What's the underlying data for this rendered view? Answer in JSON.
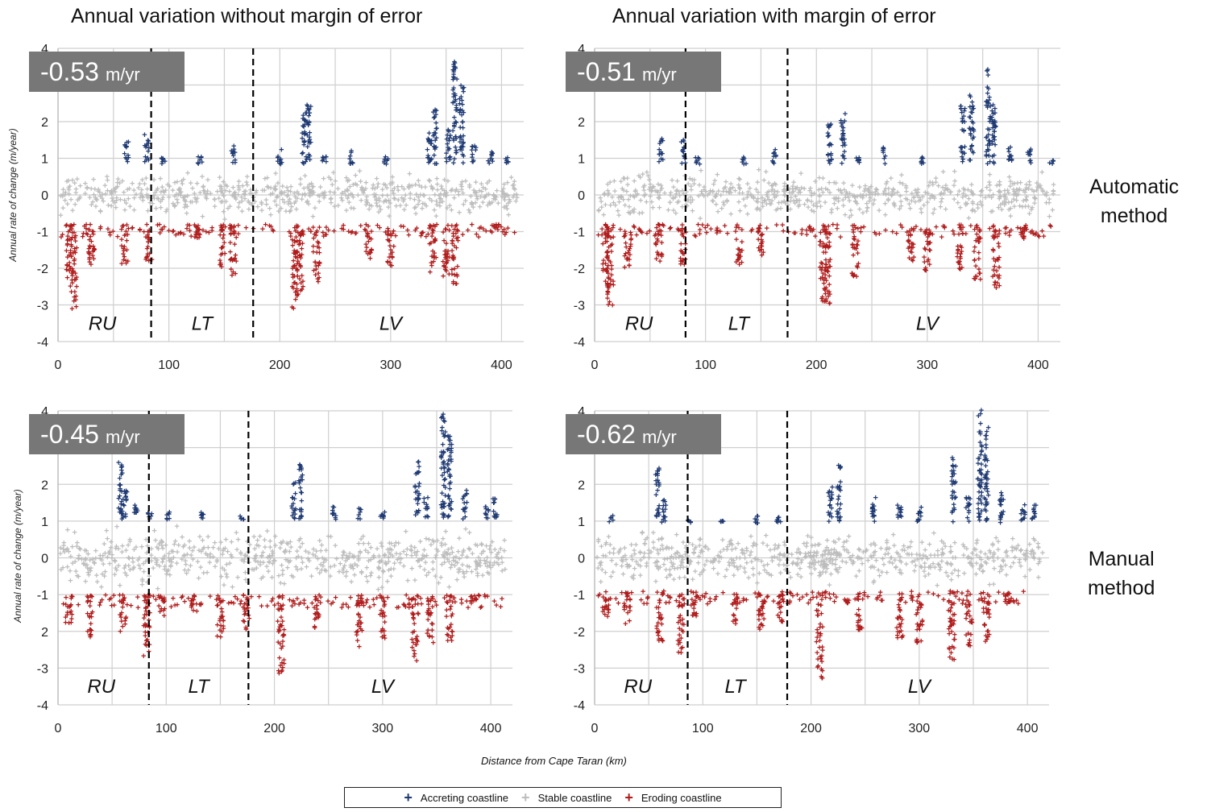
{
  "column_titles": [
    "Annual variation without margin of error",
    "Annual variation with margin of error"
  ],
  "row_labels": {
    "automatic": [
      "Automatic",
      "method"
    ],
    "manual": [
      "Manual",
      "method"
    ]
  },
  "x_axis_title": "Distance from Cape Taran (km)",
  "legend": [
    {
      "name": "Accreting coastline",
      "color": "#1f3a73"
    },
    {
      "name": "Stable coastline",
      "color": "#bdbdbd"
    },
    {
      "name": "Eroding coastline",
      "color": "#b01c1c"
    }
  ],
  "colors": {
    "accreting": "#1f3a73",
    "stable": "#bdbdbd",
    "eroding": "#b01c1c",
    "badge_bg": "#777777",
    "divider": "#000000",
    "grid": "#cfcfcf"
  },
  "chart_data": [
    {
      "type": "scatter",
      "panel": "automatic-without-margin",
      "mean_rate_value": "-0.53",
      "mean_rate_unit": "m/yr",
      "ylabel": "Annual rate of change (m/year)",
      "xlim": [
        0,
        420
      ],
      "ylim": [
        -4,
        4
      ],
      "xticks": [
        "0",
        "100",
        "200",
        "300",
        "400"
      ],
      "yticks": [
        "4",
        "",
        "2",
        "1",
        "0",
        "-1",
        "-2",
        "-3",
        "-4"
      ],
      "regions": [
        {
          "label": "RU",
          "x": 40
        },
        {
          "label": "LT",
          "x": 130
        },
        {
          "label": "LV",
          "x": 300
        }
      ],
      "dividers_x": [
        84,
        176
      ],
      "threshold_accreting": 0.8,
      "threshold_eroding": -0.8,
      "accreting_peaks": [
        [
          62,
          1.4
        ],
        [
          80,
          1.6
        ],
        [
          95,
          1.0
        ],
        [
          128,
          1.0
        ],
        [
          158,
          1.3
        ],
        [
          200,
          1.2
        ],
        [
          222,
          2.2
        ],
        [
          226,
          2.5
        ],
        [
          240,
          1.0
        ],
        [
          265,
          1.2
        ],
        [
          296,
          1.0
        ],
        [
          335,
          1.8
        ],
        [
          340,
          2.3
        ],
        [
          352,
          1.8
        ],
        [
          358,
          3.8
        ],
        [
          364,
          3.0
        ],
        [
          375,
          1.3
        ],
        [
          390,
          1.2
        ],
        [
          405,
          1.0
        ]
      ],
      "eroding_troughs": [
        [
          10,
          -2.5
        ],
        [
          14,
          -3.1
        ],
        [
          30,
          -2.1
        ],
        [
          60,
          -1.9
        ],
        [
          82,
          -1.8
        ],
        [
          126,
          -1.2
        ],
        [
          148,
          -2.0
        ],
        [
          158,
          -2.2
        ],
        [
          214,
          -3.2
        ],
        [
          218,
          -2.8
        ],
        [
          233,
          -2.4
        ],
        [
          280,
          -1.8
        ],
        [
          300,
          -2.0
        ],
        [
          338,
          -2.1
        ],
        [
          350,
          -2.3
        ],
        [
          358,
          -2.5
        ],
        [
          395,
          -0.9
        ]
      ],
      "seed": 1
    },
    {
      "type": "scatter",
      "panel": "automatic-with-margin",
      "mean_rate_value": "-0.51",
      "mean_rate_unit": "m/yr",
      "ylabel": "",
      "xlim": [
        0,
        420
      ],
      "ylim": [
        -4,
        4
      ],
      "xticks": [
        "0",
        "100",
        "200",
        "300",
        "400"
      ],
      "yticks": [
        "4",
        "",
        "2",
        "1",
        "0",
        "-1",
        "-2",
        "-3",
        "-4"
      ],
      "regions": [
        {
          "label": "RU",
          "x": 40
        },
        {
          "label": "LT",
          "x": 130
        },
        {
          "label": "LV",
          "x": 300
        }
      ],
      "dividers_x": [
        82,
        174
      ],
      "threshold_accreting": 0.8,
      "threshold_eroding": -0.8,
      "accreting_peaks": [
        [
          60,
          1.5
        ],
        [
          80,
          1.5
        ],
        [
          93,
          1.0
        ],
        [
          135,
          1.0
        ],
        [
          162,
          1.2
        ],
        [
          212,
          2.0
        ],
        [
          224,
          2.2
        ],
        [
          238,
          1.0
        ],
        [
          262,
          1.3
        ],
        [
          295,
          1.0
        ],
        [
          332,
          2.4
        ],
        [
          340,
          2.7
        ],
        [
          355,
          3.4
        ],
        [
          360,
          2.6
        ],
        [
          375,
          1.3
        ],
        [
          392,
          1.2
        ],
        [
          412,
          0.9
        ]
      ],
      "eroding_troughs": [
        [
          10,
          -2.6
        ],
        [
          14,
          -3.2
        ],
        [
          30,
          -2.0
        ],
        [
          58,
          -1.8
        ],
        [
          80,
          -1.9
        ],
        [
          130,
          -1.9
        ],
        [
          150,
          -1.8
        ],
        [
          206,
          -2.9
        ],
        [
          210,
          -3.0
        ],
        [
          235,
          -2.3
        ],
        [
          285,
          -1.9
        ],
        [
          300,
          -2.1
        ],
        [
          330,
          -2.1
        ],
        [
          345,
          -2.3
        ],
        [
          362,
          -2.6
        ],
        [
          386,
          -1.2
        ]
      ],
      "seed": 2
    },
    {
      "type": "scatter",
      "panel": "manual-without-margin",
      "mean_rate_value": "-0.45",
      "mean_rate_unit": "m/yr",
      "ylabel": "Annual rate of change (m/year)",
      "xlim": [
        0,
        420
      ],
      "ylim": [
        -4,
        4
      ],
      "xticks": [
        "0",
        "100",
        "200",
        "300",
        "400"
      ],
      "yticks": [
        "4",
        "",
        "2",
        "1",
        "0",
        "-1",
        "",
        "-3",
        "-4"
      ],
      "yticks_extra": [
        {
          "y": -2,
          "label": "2"
        }
      ],
      "regions": [
        {
          "label": "RU",
          "x": 40
        },
        {
          "label": "LT",
          "x": 130
        },
        {
          "label": "LV",
          "x": 300
        }
      ],
      "dividers_x": [
        84,
        176
      ],
      "threshold_accreting": 1.0,
      "threshold_eroding": -1.0,
      "accreting_peaks": [
        [
          58,
          2.6
        ],
        [
          62,
          1.8
        ],
        [
          72,
          1.4
        ],
        [
          85,
          1.2
        ],
        [
          102,
          1.2
        ],
        [
          134,
          1.2
        ],
        [
          170,
          1.1
        ],
        [
          218,
          2.0
        ],
        [
          224,
          2.5
        ],
        [
          255,
          1.4
        ],
        [
          278,
          1.3
        ],
        [
          300,
          1.3
        ],
        [
          332,
          2.6
        ],
        [
          340,
          1.6
        ],
        [
          356,
          3.9
        ],
        [
          362,
          3.5
        ],
        [
          376,
          1.8
        ],
        [
          396,
          1.4
        ],
        [
          404,
          1.6
        ]
      ],
      "eroding_troughs": [
        [
          10,
          -1.8
        ],
        [
          30,
          -2.2
        ],
        [
          60,
          -2.0
        ],
        [
          82,
          -2.7
        ],
        [
          96,
          -1.6
        ],
        [
          126,
          -1.5
        ],
        [
          150,
          -2.2
        ],
        [
          174,
          -2.0
        ],
        [
          206,
          -3.2
        ],
        [
          240,
          -2.0
        ],
        [
          278,
          -2.5
        ],
        [
          300,
          -2.2
        ],
        [
          330,
          -2.8
        ],
        [
          344,
          -2.3
        ],
        [
          362,
          -2.3
        ],
        [
          384,
          -1.2
        ]
      ],
      "seed": 3
    },
    {
      "type": "scatter",
      "panel": "manual-with-margin",
      "mean_rate_value": "-0.62",
      "mean_rate_unit": "m/yr",
      "ylabel": "",
      "xlim": [
        0,
        420
      ],
      "ylim": [
        -4,
        4
      ],
      "xticks": [
        "0",
        "100",
        "200",
        "300",
        "400"
      ],
      "yticks": [
        "4",
        "",
        "2",
        "1",
        "0",
        "-1",
        "-2",
        "-3",
        "-4"
      ],
      "regions": [
        {
          "label": "RU",
          "x": 40
        },
        {
          "label": "LT",
          "x": 130
        },
        {
          "label": "LV",
          "x": 300
        }
      ],
      "dividers_x": [
        86,
        178
      ],
      "threshold_accreting": 0.9,
      "threshold_eroding": -0.9,
      "accreting_peaks": [
        [
          15,
          1.1
        ],
        [
          58,
          2.4
        ],
        [
          64,
          1.6
        ],
        [
          88,
          1.0
        ],
        [
          118,
          1.0
        ],
        [
          150,
          1.1
        ],
        [
          170,
          1.1
        ],
        [
          218,
          2.0
        ],
        [
          226,
          2.5
        ],
        [
          258,
          1.6
        ],
        [
          282,
          1.4
        ],
        [
          300,
          1.4
        ],
        [
          332,
          2.7
        ],
        [
          345,
          1.6
        ],
        [
          356,
          4.0
        ],
        [
          362,
          3.5
        ],
        [
          376,
          1.8
        ],
        [
          396,
          1.4
        ],
        [
          406,
          1.4
        ]
      ],
      "eroding_troughs": [
        [
          10,
          -1.6
        ],
        [
          30,
          -1.8
        ],
        [
          60,
          -2.3
        ],
        [
          80,
          -2.6
        ],
        [
          92,
          -1.6
        ],
        [
          130,
          -1.8
        ],
        [
          154,
          -2.1
        ],
        [
          172,
          -1.8
        ],
        [
          208,
          -3.3
        ],
        [
          244,
          -2.0
        ],
        [
          282,
          -2.4
        ],
        [
          300,
          -2.3
        ],
        [
          330,
          -2.8
        ],
        [
          346,
          -2.4
        ],
        [
          362,
          -2.3
        ],
        [
          382,
          -1.2
        ]
      ],
      "seed": 4
    }
  ]
}
